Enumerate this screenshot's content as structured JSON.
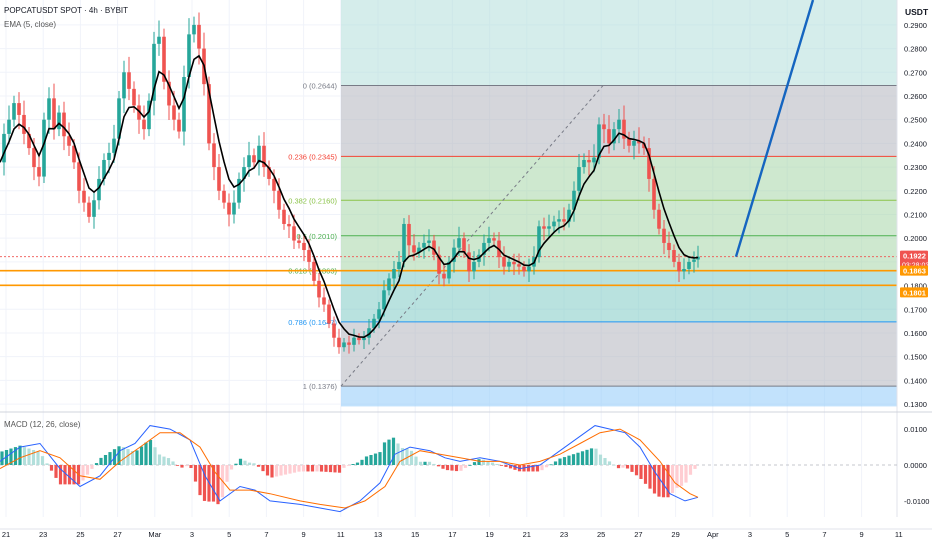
{
  "header": {
    "symbol": "POPCATUSDT SPOT · 4h · BYBIT",
    "ema_label": "EMA (5, close)",
    "macd_label": "MACD (12, 26, close)",
    "currency": "USDT"
  },
  "colors": {
    "up": "#26a69a",
    "down": "#ef5350",
    "ema": "#000000",
    "macd_line": "#2962ff",
    "signal_line": "#ff6d00",
    "hist_up": "#26a69a",
    "hist_up_light": "#b2dfdb",
    "hist_down": "#ef5350",
    "hist_down_light": "#ffcdd2",
    "fib_1": "#787b86",
    "fib_0786": "#2196f3",
    "fib_0618": "#4caf50",
    "fib_05": "#4caf50",
    "fib_0382": "#8bc34a",
    "fib_0236": "#f44336",
    "fib_0": "#787b86",
    "support": "#ff9800",
    "projection": "#1565c0",
    "price_tag": "#ef5350"
  },
  "chart_data": [
    {
      "type": "candlestick",
      "title": "POPCATUSDT SPOT · 4h · BYBIT",
      "x": [
        "21",
        "23",
        "25",
        "27",
        "Mar",
        "3",
        "5",
        "7",
        "9",
        "11",
        "13",
        "15",
        "17",
        "19",
        "21",
        "23",
        "25",
        "27",
        "29",
        "Apr",
        "3",
        "5",
        "7",
        "9",
        "11"
      ],
      "ylim": [
        0.1275,
        0.3005
      ],
      "y_ticks": [
        "0.1300",
        "0.1400",
        "0.1500",
        "0.1600",
        "0.1700",
        "0.1800",
        "0.1900",
        "0.2000",
        "0.2100",
        "0.2200",
        "0.2300",
        "0.2400",
        "0.2500",
        "0.2600",
        "0.2700",
        "0.2800",
        "0.2900"
      ],
      "close_points": [
        [
          0,
          0.232
        ],
        [
          4,
          0.244
        ],
        [
          9,
          0.25
        ],
        [
          14,
          0.257
        ],
        [
          19,
          0.252
        ],
        [
          24,
          0.244
        ],
        [
          29,
          0.238
        ],
        [
          34,
          0.23
        ],
        [
          39,
          0.226
        ],
        [
          44,
          0.25
        ],
        [
          49,
          0.259
        ],
        [
          54,
          0.246
        ],
        [
          59,
          0.253
        ],
        [
          64,
          0.243
        ],
        [
          69,
          0.239
        ],
        [
          74,
          0.232
        ],
        [
          79,
          0.22
        ],
        [
          84,
          0.215
        ],
        [
          89,
          0.209
        ],
        [
          94,
          0.216
        ],
        [
          99,
          0.225
        ],
        [
          104,
          0.233
        ],
        [
          109,
          0.236
        ],
        [
          114,
          0.242
        ],
        [
          119,
          0.259
        ],
        [
          124,
          0.27
        ],
        [
          129,
          0.263
        ],
        [
          134,
          0.256
        ],
        [
          139,
          0.25
        ],
        [
          144,
          0.246
        ],
        [
          149,
          0.258
        ],
        [
          154,
          0.282
        ],
        [
          159,
          0.285
        ],
        [
          164,
          0.266
        ],
        [
          169,
          0.256
        ],
        [
          174,
          0.25
        ],
        [
          179,
          0.245
        ],
        [
          184,
          0.268
        ],
        [
          189,
          0.286
        ],
        [
          194,
          0.29
        ],
        [
          199,
          0.28
        ],
        [
          204,
          0.265
        ],
        [
          209,
          0.24
        ],
        [
          214,
          0.23
        ],
        [
          219,
          0.22
        ],
        [
          224,
          0.215
        ],
        [
          229,
          0.21
        ],
        [
          234,
          0.215
        ],
        [
          239,
          0.225
        ],
        [
          244,
          0.23
        ],
        [
          249,
          0.235
        ],
        [
          254,
          0.232
        ],
        [
          259,
          0.239
        ],
        [
          264,
          0.23
        ],
        [
          269,
          0.225
        ],
        [
          274,
          0.22
        ],
        [
          279,
          0.212
        ],
        [
          284,
          0.206
        ],
        [
          289,
          0.205
        ],
        [
          294,
          0.199
        ],
        [
          299,
          0.198
        ],
        [
          304,
          0.195
        ],
        [
          309,
          0.19
        ],
        [
          314,
          0.182
        ],
        [
          319,
          0.175
        ],
        [
          324,
          0.172
        ],
        [
          329,
          0.164
        ],
        [
          334,
          0.158
        ],
        [
          339,
          0.154
        ],
        [
          344,
          0.156
        ],
        [
          349,
          0.155
        ],
        [
          354,
          0.158
        ],
        [
          359,
          0.157
        ],
        [
          364,
          0.158
        ],
        [
          369,
          0.162
        ],
        [
          374,
          0.166
        ],
        [
          379,
          0.17
        ],
        [
          384,
          0.178
        ],
        [
          389,
          0.183
        ],
        [
          394,
          0.187
        ],
        [
          399,
          0.19
        ],
        [
          404,
          0.206
        ],
        [
          409,
          0.197
        ],
        [
          414,
          0.194
        ],
        [
          419,
          0.196
        ],
        [
          424,
          0.198
        ],
        [
          429,
          0.199
        ],
        [
          434,
          0.193
        ],
        [
          439,
          0.185
        ],
        [
          444,
          0.183
        ],
        [
          449,
          0.19
        ],
        [
          454,
          0.196
        ],
        [
          459,
          0.2
        ],
        [
          464,
          0.194
        ],
        [
          469,
          0.186
        ],
        [
          474,
          0.19
        ],
        [
          479,
          0.193
        ],
        [
          484,
          0.198
        ],
        [
          489,
          0.2
        ],
        [
          494,
          0.199
        ],
        [
          499,
          0.192
        ],
        [
          504,
          0.188
        ],
        [
          509,
          0.19
        ],
        [
          514,
          0.189
        ],
        [
          519,
          0.188
        ],
        [
          524,
          0.186
        ],
        [
          529,
          0.188
        ],
        [
          534,
          0.192
        ],
        [
          539,
          0.205
        ],
        [
          544,
          0.204
        ],
        [
          549,
          0.205
        ],
        [
          554,
          0.207
        ],
        [
          559,
          0.208
        ],
        [
          564,
          0.207
        ],
        [
          569,
          0.212
        ],
        [
          574,
          0.22
        ],
        [
          579,
          0.23
        ],
        [
          584,
          0.233
        ],
        [
          589,
          0.232
        ],
        [
          594,
          0.234
        ],
        [
          599,
          0.248
        ],
        [
          604,
          0.246
        ],
        [
          609,
          0.24
        ],
        [
          614,
          0.246
        ],
        [
          619,
          0.25
        ],
        [
          624,
          0.242
        ],
        [
          629,
          0.239
        ],
        [
          634,
          0.241
        ],
        [
          639,
          0.24
        ],
        [
          644,
          0.238
        ],
        [
          649,
          0.225
        ],
        [
          654,
          0.212
        ],
        [
          659,
          0.204
        ],
        [
          664,
          0.198
        ],
        [
          669,
          0.195
        ],
        [
          674,
          0.19
        ],
        [
          679,
          0.186
        ],
        [
          684,
          0.187
        ],
        [
          689,
          0.19
        ],
        [
          694,
          0.191
        ],
        [
          698,
          0.1922
        ]
      ],
      "ema_label": "EMA (5, close)",
      "fib_levels": [
        {
          "ratio": "0",
          "value": 0.2644,
          "label": "0 (0.2644)",
          "fill": "#b2b5be"
        },
        {
          "ratio": "0.236",
          "value": 0.2345,
          "label": "0.236 (0.2345)",
          "fill": "#a5d6a7"
        },
        {
          "ratio": "0.382",
          "value": 0.216,
          "label": "0.382 (0.2160)",
          "fill": "#a5d6a7"
        },
        {
          "ratio": "0.5",
          "value": 0.201,
          "label": "0.5 (0.2010)",
          "fill": "#a5d6a7"
        },
        {
          "ratio": "0.618",
          "value": 0.1863,
          "label": "0.618 (0.1863)",
          "fill": "#80cbc4"
        },
        {
          "ratio": "0.786",
          "value": 0.1647,
          "label": "0.786 (0.1647)",
          "fill": "#b2b5be"
        },
        {
          "ratio": "1",
          "value": 0.1376,
          "label": "1 (0.1376)",
          "fill": "#90caf9"
        }
      ],
      "fib_bottom": 0.129,
      "support_levels": [
        0.1863,
        0.1801
      ],
      "projection": {
        "from": [
          0.1922
        ],
        "to": [
          0.3005
        ]
      },
      "price_tags": [
        {
          "value": 0.1922,
          "label": "0.1922",
          "sub": "03:28:03",
          "color": "#ef5350"
        },
        {
          "value": 0.1863,
          "label": "0.1863",
          "color": "#ff9800"
        },
        {
          "value": 0.1801,
          "label": "0.1801",
          "color": "#ff9800"
        }
      ]
    },
    {
      "type": "macd",
      "title": "MACD (12, 26, close)",
      "ylim": [
        -0.0145,
        0.0145
      ],
      "y_ticks": [
        "0.0100",
        "0.0000",
        "-0.0100"
      ],
      "macd": [
        [
          0,
          0.001
        ],
        [
          20,
          0.005
        ],
        [
          40,
          0.006
        ],
        [
          60,
          -0.001
        ],
        [
          80,
          -0.006
        ],
        [
          100,
          -0.003
        ],
        [
          120,
          0.004
        ],
        [
          135,
          0.006
        ],
        [
          150,
          0.011
        ],
        [
          170,
          0.01
        ],
        [
          190,
          0.007
        ],
        [
          205,
          -0.003
        ],
        [
          220,
          -0.01
        ],
        [
          240,
          -0.006
        ],
        [
          255,
          -0.007
        ],
        [
          270,
          -0.01
        ],
        [
          300,
          -0.011
        ],
        [
          320,
          -0.012
        ],
        [
          340,
          -0.013
        ],
        [
          360,
          -0.01
        ],
        [
          380,
          -0.005
        ],
        [
          395,
          0.003
        ],
        [
          410,
          0.005
        ],
        [
          430,
          0.004
        ],
        [
          445,
          0.002
        ],
        [
          460,
          0.001
        ],
        [
          480,
          0.002
        ],
        [
          500,
          0.001
        ],
        [
          520,
          -0.001
        ],
        [
          540,
          0.0
        ],
        [
          560,
          0.004
        ],
        [
          580,
          0.008
        ],
        [
          595,
          0.011
        ],
        [
          610,
          0.01
        ],
        [
          625,
          0.009
        ],
        [
          640,
          0.005
        ],
        [
          655,
          -0.002
        ],
        [
          670,
          -0.008
        ],
        [
          685,
          -0.01
        ],
        [
          698,
          -0.009
        ]
      ],
      "signal": [
        [
          0,
          -0.001
        ],
        [
          20,
          0.002
        ],
        [
          40,
          0.004
        ],
        [
          60,
          0.002
        ],
        [
          80,
          -0.003
        ],
        [
          100,
          -0.004
        ],
        [
          120,
          0.001
        ],
        [
          140,
          0.005
        ],
        [
          160,
          0.009
        ],
        [
          180,
          0.009
        ],
        [
          200,
          0.005
        ],
        [
          215,
          -0.002
        ],
        [
          230,
          -0.007
        ],
        [
          250,
          -0.007
        ],
        [
          270,
          -0.008
        ],
        [
          300,
          -0.01
        ],
        [
          320,
          -0.011
        ],
        [
          345,
          -0.012
        ],
        [
          365,
          -0.01
        ],
        [
          385,
          -0.006
        ],
        [
          400,
          0.001
        ],
        [
          420,
          0.004
        ],
        [
          440,
          0.003
        ],
        [
          460,
          0.002
        ],
        [
          480,
          0.001
        ],
        [
          500,
          0.001
        ],
        [
          520,
          0.0
        ],
        [
          540,
          0.001
        ],
        [
          560,
          0.003
        ],
        [
          580,
          0.006
        ],
        [
          600,
          0.009
        ],
        [
          620,
          0.01
        ],
        [
          640,
          0.007
        ],
        [
          660,
          0.001
        ],
        [
          675,
          -0.005
        ],
        [
          690,
          -0.008
        ],
        [
          698,
          -0.009
        ]
      ]
    }
  ]
}
